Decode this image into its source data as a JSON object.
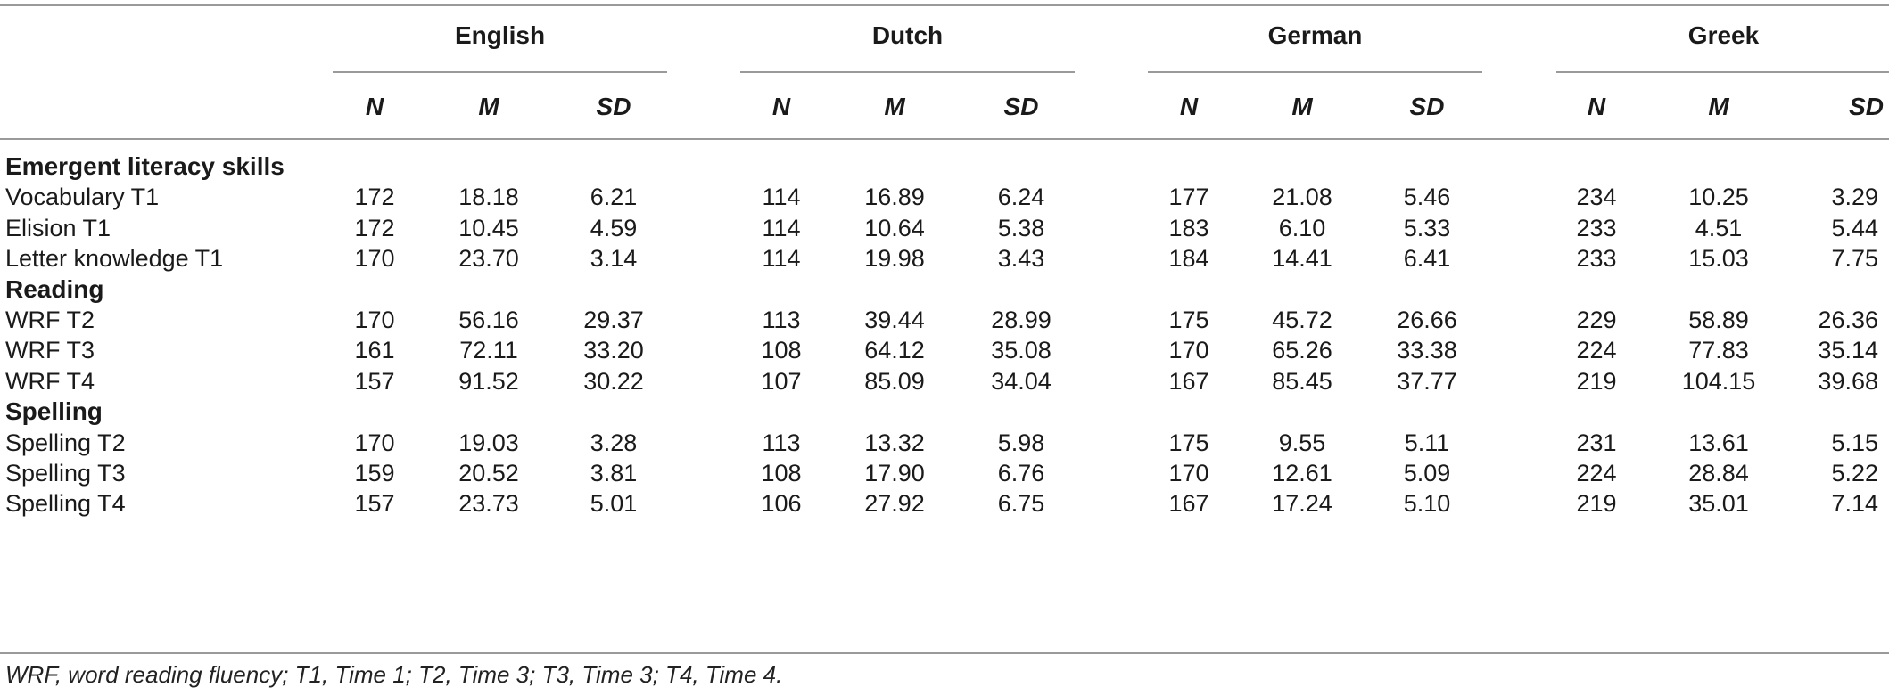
{
  "languages": [
    "English",
    "Dutch",
    "German",
    "Greek"
  ],
  "column_headers": [
    "N",
    "M",
    "SD"
  ],
  "sections": [
    {
      "title": "Emergent literacy skills",
      "rows": [
        {
          "label": "Vocabulary T1",
          "values": [
            "172",
            "18.18",
            "6.21",
            "114",
            "16.89",
            "6.24",
            "177",
            "21.08",
            "5.46",
            "234",
            "10.25",
            "3.29"
          ]
        },
        {
          "label": "Elision T1",
          "values": [
            "172",
            "10.45",
            "4.59",
            "114",
            "10.64",
            "5.38",
            "183",
            "6.10",
            "5.33",
            "233",
            "4.51",
            "5.44"
          ]
        },
        {
          "label": "Letter knowledge T1",
          "values": [
            "170",
            "23.70",
            "3.14",
            "114",
            "19.98",
            "3.43",
            "184",
            "14.41",
            "6.41",
            "233",
            "15.03",
            "7.75"
          ]
        }
      ]
    },
    {
      "title": "Reading",
      "rows": [
        {
          "label": "WRF T2",
          "values": [
            "170",
            "56.16",
            "29.37",
            "113",
            "39.44",
            "28.99",
            "175",
            "45.72",
            "26.66",
            "229",
            "58.89",
            "26.36"
          ]
        },
        {
          "label": "WRF T3",
          "values": [
            "161",
            "72.11",
            "33.20",
            "108",
            "64.12",
            "35.08",
            "170",
            "65.26",
            "33.38",
            "224",
            "77.83",
            "35.14"
          ]
        },
        {
          "label": "WRF T4",
          "values": [
            "157",
            "91.52",
            "30.22",
            "107",
            "85.09",
            "34.04",
            "167",
            "85.45",
            "37.77",
            "219",
            "104.15",
            "39.68"
          ]
        }
      ]
    },
    {
      "title": "Spelling",
      "rows": [
        {
          "label": "Spelling T2",
          "values": [
            "170",
            "19.03",
            "3.28",
            "113",
            "13.32",
            "5.98",
            "175",
            "9.55",
            "5.11",
            "231",
            "13.61",
            "5.15"
          ]
        },
        {
          "label": "Spelling T3",
          "values": [
            "159",
            "20.52",
            "3.81",
            "108",
            "17.90",
            "6.76",
            "170",
            "12.61",
            "5.09",
            "224",
            "28.84",
            "5.22"
          ]
        },
        {
          "label": "Spelling T4",
          "values": [
            "157",
            "23.73",
            "5.01",
            "106",
            "27.92",
            "6.75",
            "167",
            "17.24",
            "5.10",
            "219",
            "35.01",
            "7.14"
          ]
        }
      ]
    }
  ],
  "footnote": "WRF, word reading fluency; T1, Time 1; T2, Time 3; T3, Time 3; T4, Time 4."
}
